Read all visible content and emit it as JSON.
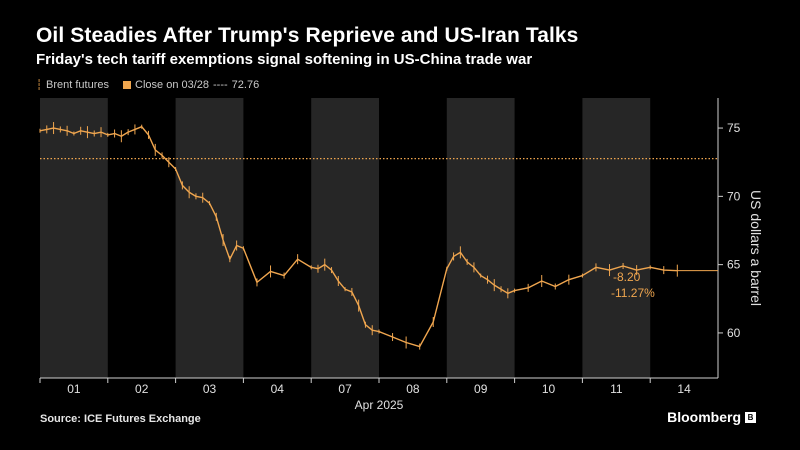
{
  "header": {
    "title": "Oil Steadies After Trump's Reprieve and US-Iran Talks",
    "subtitle": "Friday's tech tariff exemptions signal softening in US-China trade war"
  },
  "legend": {
    "series_label": "Brent futures",
    "reference_label": "Close on 03/28",
    "reference_dash": "----",
    "reference_value": "72.76"
  },
  "footer": {
    "source": "Source: ICE Futures Exchange",
    "brand": "Bloomberg",
    "brand_mark": "B"
  },
  "colors": {
    "series": "#f0a64f",
    "shade": "#262626",
    "axis": "#cfcfcf"
  },
  "chart_data": {
    "type": "line",
    "title": "Oil Steadies After Trump's Reprieve and US-Iran Talks",
    "subtitle": "Friday's tech tariff exemptions signal softening in US-China trade war",
    "xlabel": "Apr 2025",
    "ylabel": "US dollars a barrel",
    "x_categories": [
      "01",
      "02",
      "03",
      "04",
      "07",
      "08",
      "09",
      "10",
      "11",
      "14"
    ],
    "month_label": "Apr 2025",
    "y_ticks": [
      60,
      65,
      70,
      75
    ],
    "ylim": [
      56.7,
      77.2
    ],
    "reference_line": {
      "label": "Close on 03/28",
      "value": 72.76
    },
    "shaded_days": [
      "01",
      "03",
      "07",
      "09",
      "11"
    ],
    "annotations": {
      "change": "-8.20",
      "change_pct": "-11.27%",
      "last_value": 64.56
    },
    "series": [
      {
        "name": "Brent futures",
        "x": [
          0,
          0.1,
          0.2,
          0.3,
          0.4,
          0.5,
          0.6,
          0.7,
          0.8,
          0.9,
          1.0,
          1.1,
          1.2,
          1.3,
          1.4,
          1.5,
          1.6,
          1.7,
          1.8,
          1.9,
          2.0,
          2.1,
          2.2,
          2.3,
          2.4,
          2.5,
          2.6,
          2.7,
          2.8,
          2.9,
          3.0,
          3.2,
          3.4,
          3.6,
          3.8,
          4.0,
          4.1,
          4.2,
          4.3,
          4.4,
          4.5,
          4.6,
          4.7,
          4.8,
          4.9,
          5.0,
          5.2,
          5.4,
          5.6,
          5.8,
          6.0,
          6.1,
          6.2,
          6.3,
          6.4,
          6.5,
          6.6,
          6.7,
          6.8,
          6.9,
          7.0,
          7.2,
          7.4,
          7.6,
          7.8,
          8.0,
          8.2,
          8.4,
          8.6,
          8.8,
          9.0,
          9.2,
          9.4
        ],
        "y": [
          74.8,
          74.9,
          75.0,
          74.9,
          74.8,
          74.6,
          74.8,
          74.7,
          74.6,
          74.7,
          74.5,
          74.6,
          74.4,
          74.7,
          74.9,
          75.1,
          74.5,
          73.4,
          73.0,
          72.5,
          72.0,
          70.8,
          70.3,
          70.0,
          69.9,
          69.5,
          68.5,
          66.8,
          65.4,
          66.4,
          66.2,
          63.7,
          64.5,
          64.2,
          65.4,
          64.8,
          64.7,
          65.0,
          64.6,
          63.8,
          63.2,
          63.0,
          62.0,
          60.6,
          60.2,
          60.1,
          59.7,
          59.3,
          59.0,
          60.8,
          64.7,
          65.6,
          65.9,
          65.2,
          64.8,
          64.2,
          63.9,
          63.5,
          63.2,
          62.9,
          63.1,
          63.3,
          63.8,
          63.4,
          63.9,
          64.2,
          64.8,
          64.6,
          64.9,
          64.6,
          64.8,
          64.6,
          64.56
        ]
      }
    ]
  }
}
